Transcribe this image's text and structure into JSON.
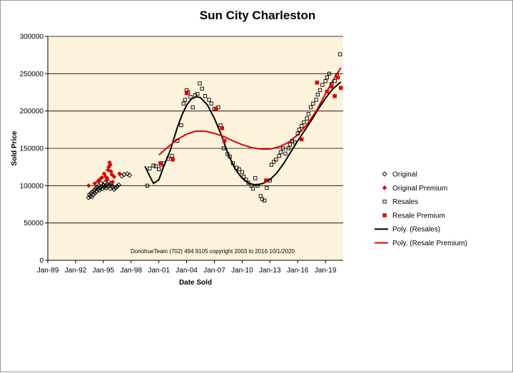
{
  "chart_data": {
    "type": "scatter",
    "title": "Sun City Charleston",
    "xlabel": "Date Sold",
    "ylabel": "Sold Price",
    "annotation": "DonohueTeam   (702) 494 9105 copyright  2003 to 2016  10/1/2020",
    "xlim": [
      "1989-01",
      "2020-12"
    ],
    "ylim": [
      0,
      300000
    ],
    "x_ticks": [
      "Jan-89",
      "Jan-92",
      "Jan-95",
      "Jan-98",
      "Jan-01",
      "Jan-04",
      "Jan-07",
      "Jan-10",
      "Jan-13",
      "Jan-16",
      "Jan-19"
    ],
    "y_ticks": [
      "0",
      "50000",
      "100000",
      "150000",
      "200000",
      "250000",
      "300000"
    ],
    "y_tick_values": [
      0,
      50000,
      100000,
      150000,
      200000,
      250000,
      300000
    ],
    "grid": "horizontal",
    "legend_position": "right",
    "background_color": "#fdf3dc",
    "series": [
      {
        "name": "Original",
        "marker": "diamond-open",
        "color": "#000000",
        "points": [
          [
            "1993-06",
            84000
          ],
          [
            "1993-07",
            88000
          ],
          [
            "1993-08",
            86000
          ],
          [
            "1993-09",
            90000
          ],
          [
            "1993-10",
            85000
          ],
          [
            "1993-11",
            92000
          ],
          [
            "1993-12",
            88000
          ],
          [
            "1994-01",
            94000
          ],
          [
            "1994-02",
            90000
          ],
          [
            "1994-03",
            96000
          ],
          [
            "1994-04",
            92000
          ],
          [
            "1994-05",
            98000
          ],
          [
            "1994-06",
            95000
          ],
          [
            "1994-07",
            100000
          ],
          [
            "1994-08",
            94000
          ],
          [
            "1994-09",
            97000
          ],
          [
            "1994-10",
            103000
          ],
          [
            "1994-11",
            99000
          ],
          [
            "1994-12",
            96000
          ],
          [
            "1995-01",
            101000
          ],
          [
            "1995-02",
            98000
          ],
          [
            "1995-03",
            104000
          ],
          [
            "1995-04",
            100000
          ],
          [
            "1995-05",
            97000
          ],
          [
            "1995-06",
            102000
          ],
          [
            "1995-07",
            99000
          ],
          [
            "1995-08",
            105000
          ],
          [
            "1995-09",
            101000
          ],
          [
            "1995-10",
            96000
          ],
          [
            "1995-11",
            103000
          ],
          [
            "1995-12",
            100000
          ],
          [
            "1996-01",
            98000
          ],
          [
            "1996-03",
            95000
          ],
          [
            "1996-05",
            97000
          ],
          [
            "1996-07",
            99000
          ],
          [
            "1996-09",
            101000
          ],
          [
            "1997-01",
            113000
          ],
          [
            "1997-04",
            115000
          ],
          [
            "1997-08",
            116000
          ],
          [
            "1997-11",
            114000
          ]
        ]
      },
      {
        "name": "Original Premium",
        "marker": "diamond-filled",
        "color": "#e00000",
        "points": [
          [
            "1993-06",
            100000
          ],
          [
            "1994-02",
            103000
          ],
          [
            "1994-06",
            106000
          ],
          [
            "1994-08",
            108000
          ],
          [
            "1994-11",
            111000
          ],
          [
            "1995-02",
            116000
          ],
          [
            "1995-04",
            112000
          ],
          [
            "1995-05",
            107000
          ],
          [
            "1995-06",
            110000
          ],
          [
            "1995-07",
            121000
          ],
          [
            "1995-08",
            125000
          ],
          [
            "1995-09",
            131000
          ],
          [
            "1995-10",
            128000
          ],
          [
            "1995-11",
            119000
          ],
          [
            "1995-12",
            115000
          ],
          [
            "1996-01",
            105000
          ],
          [
            "1996-03",
            112000
          ],
          [
            "1996-10",
            116000
          ]
        ]
      },
      {
        "name": "Resales",
        "marker": "square-open",
        "color": "#000000",
        "points": [
          [
            "1999-10",
            100000
          ],
          [
            "2000-01",
            123000
          ],
          [
            "2000-06",
            127000
          ],
          [
            "2000-09",
            126000
          ],
          [
            "2001-01",
            122000
          ],
          [
            "2001-04",
            128000
          ],
          [
            "2001-07",
            130000
          ],
          [
            "2002-01",
            136000
          ],
          [
            "2002-06",
            140000
          ],
          [
            "2003-01",
            160000
          ],
          [
            "2003-06",
            181000
          ],
          [
            "2003-09",
            210000
          ],
          [
            "2003-11",
            215000
          ],
          [
            "2004-01",
            228000
          ],
          [
            "2004-03",
            225000
          ],
          [
            "2004-06",
            219000
          ],
          [
            "2004-09",
            205000
          ],
          [
            "2004-12",
            221000
          ],
          [
            "2005-03",
            223000
          ],
          [
            "2005-06",
            237000
          ],
          [
            "2005-09",
            230000
          ],
          [
            "2006-01",
            220000
          ],
          [
            "2006-06",
            215000
          ],
          [
            "2006-09",
            210000
          ],
          [
            "2007-01",
            203000
          ],
          [
            "2007-06",
            205000
          ],
          [
            "2007-09",
            181000
          ],
          [
            "2008-01",
            150000
          ],
          [
            "2008-06",
            142000
          ],
          [
            "2008-09",
            139000
          ],
          [
            "2009-01",
            130000
          ],
          [
            "2009-06",
            124000
          ],
          [
            "2009-09",
            122000
          ],
          [
            "2010-01",
            118000
          ],
          [
            "2010-03",
            112000
          ],
          [
            "2010-06",
            108000
          ],
          [
            "2010-09",
            104000
          ],
          [
            "2011-01",
            100000
          ],
          [
            "2011-03",
            96000
          ],
          [
            "2011-06",
            110000
          ],
          [
            "2011-09",
            100000
          ],
          [
            "2012-01",
            86000
          ],
          [
            "2012-03",
            82000
          ],
          [
            "2012-06",
            80000
          ],
          [
            "2012-09",
            97000
          ],
          [
            "2013-01",
            107000
          ],
          [
            "2013-03",
            128000
          ],
          [
            "2013-06",
            132000
          ],
          [
            "2013-09",
            135000
          ],
          [
            "2014-01",
            140000
          ],
          [
            "2014-03",
            145000
          ],
          [
            "2014-06",
            150000
          ],
          [
            "2014-09",
            143000
          ],
          [
            "2015-01",
            150000
          ],
          [
            "2015-03",
            155000
          ],
          [
            "2015-06",
            160000
          ],
          [
            "2015-09",
            158000
          ],
          [
            "2016-01",
            170000
          ],
          [
            "2016-03",
            175000
          ],
          [
            "2016-06",
            180000
          ],
          [
            "2016-09",
            185000
          ],
          [
            "2017-01",
            190000
          ],
          [
            "2017-03",
            196000
          ],
          [
            "2017-06",
            205000
          ],
          [
            "2017-09",
            210000
          ],
          [
            "2018-01",
            215000
          ],
          [
            "2018-03",
            222000
          ],
          [
            "2018-06",
            228000
          ],
          [
            "2018-09",
            235000
          ],
          [
            "2019-01",
            240000
          ],
          [
            "2019-03",
            245000
          ],
          [
            "2019-06",
            250000
          ],
          [
            "2019-09",
            236000
          ],
          [
            "2020-01",
            240000
          ],
          [
            "2020-04",
            248000
          ],
          [
            "2020-08",
            276000
          ]
        ]
      },
      {
        "name": "Resale Premium",
        "marker": "square-filled",
        "color": "#e00000",
        "points": [
          [
            "2001-03",
            130000
          ],
          [
            "2002-07",
            135000
          ],
          [
            "2004-01",
            224000
          ],
          [
            "2007-03",
            203000
          ],
          [
            "2007-11",
            177000
          ],
          [
            "2008-02",
            160000
          ],
          [
            "2012-08",
            107000
          ],
          [
            "2016-06",
            162000
          ],
          [
            "2018-02",
            238000
          ],
          [
            "2019-03",
            226000
          ],
          [
            "2019-09",
            233000
          ],
          [
            "2020-01",
            220000
          ],
          [
            "2020-05",
            245000
          ],
          [
            "2020-09",
            231000
          ]
        ]
      }
    ],
    "trendlines": [
      {
        "name": "Poly. (Resales)",
        "color": "#000000",
        "points": [
          [
            "1999-07",
            126000
          ],
          [
            "2000-01",
            113000
          ],
          [
            "2000-06",
            103000
          ],
          [
            "2001-01",
            108000
          ],
          [
            "2001-07",
            125000
          ],
          [
            "2002-04",
            148000
          ],
          [
            "2003-01",
            178000
          ],
          [
            "2003-07",
            195000
          ],
          [
            "2004-01",
            208000
          ],
          [
            "2004-07",
            216000
          ],
          [
            "2005-01",
            219000
          ],
          [
            "2005-07",
            218000
          ],
          [
            "2006-04",
            208000
          ],
          [
            "2007-01",
            190000
          ],
          [
            "2007-10",
            168000
          ],
          [
            "2008-07",
            142000
          ],
          [
            "2009-04",
            122000
          ],
          [
            "2010-01",
            110000
          ],
          [
            "2010-10",
            103000
          ],
          [
            "2011-07",
            101000
          ],
          [
            "2012-04",
            103000
          ],
          [
            "2013-01",
            108000
          ],
          [
            "2013-10",
            117000
          ],
          [
            "2014-07",
            130000
          ],
          [
            "2015-04",
            145000
          ],
          [
            "2016-01",
            160000
          ],
          [
            "2016-10",
            174000
          ],
          [
            "2017-07",
            188000
          ],
          [
            "2018-04",
            203000
          ],
          [
            "2019-01",
            217000
          ],
          [
            "2019-10",
            229000
          ],
          [
            "2020-09",
            239000
          ]
        ]
      },
      {
        "name": "Poly. (Resale Premium)",
        "color": "#e00000",
        "points": [
          [
            "2001-01",
            141000
          ],
          [
            "2002-01",
            152000
          ],
          [
            "2003-01",
            162000
          ],
          [
            "2004-01",
            169000
          ],
          [
            "2005-01",
            173000
          ],
          [
            "2006-01",
            173000
          ],
          [
            "2007-01",
            170000
          ],
          [
            "2008-01",
            166000
          ],
          [
            "2009-01",
            160000
          ],
          [
            "2010-01",
            155000
          ],
          [
            "2011-01",
            151000
          ],
          [
            "2012-01",
            149000
          ],
          [
            "2013-01",
            149000
          ],
          [
            "2014-01",
            152000
          ],
          [
            "2015-01",
            158000
          ],
          [
            "2016-01",
            168000
          ],
          [
            "2017-01",
            182000
          ],
          [
            "2018-01",
            200000
          ],
          [
            "2019-01",
            223000
          ],
          [
            "2020-01",
            245000
          ],
          [
            "2020-09",
            258000
          ]
        ]
      }
    ]
  }
}
